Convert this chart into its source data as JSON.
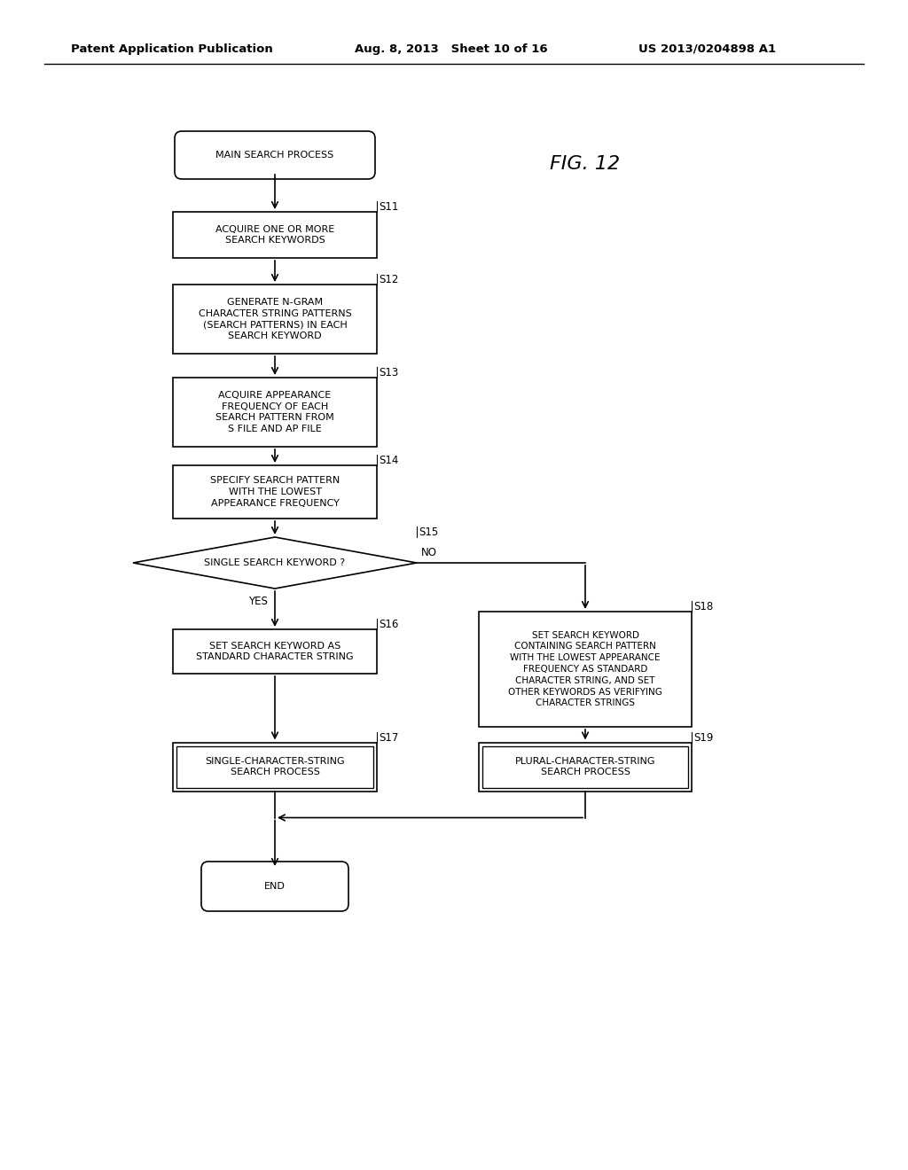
{
  "background_color": "#ffffff",
  "header_left": "Patent Application Publication",
  "header_mid": "Aug. 8, 2013   Sheet 10 of 16",
  "header_right": "US 2013/0204898 A1",
  "fig_label": "FIG. 12"
}
